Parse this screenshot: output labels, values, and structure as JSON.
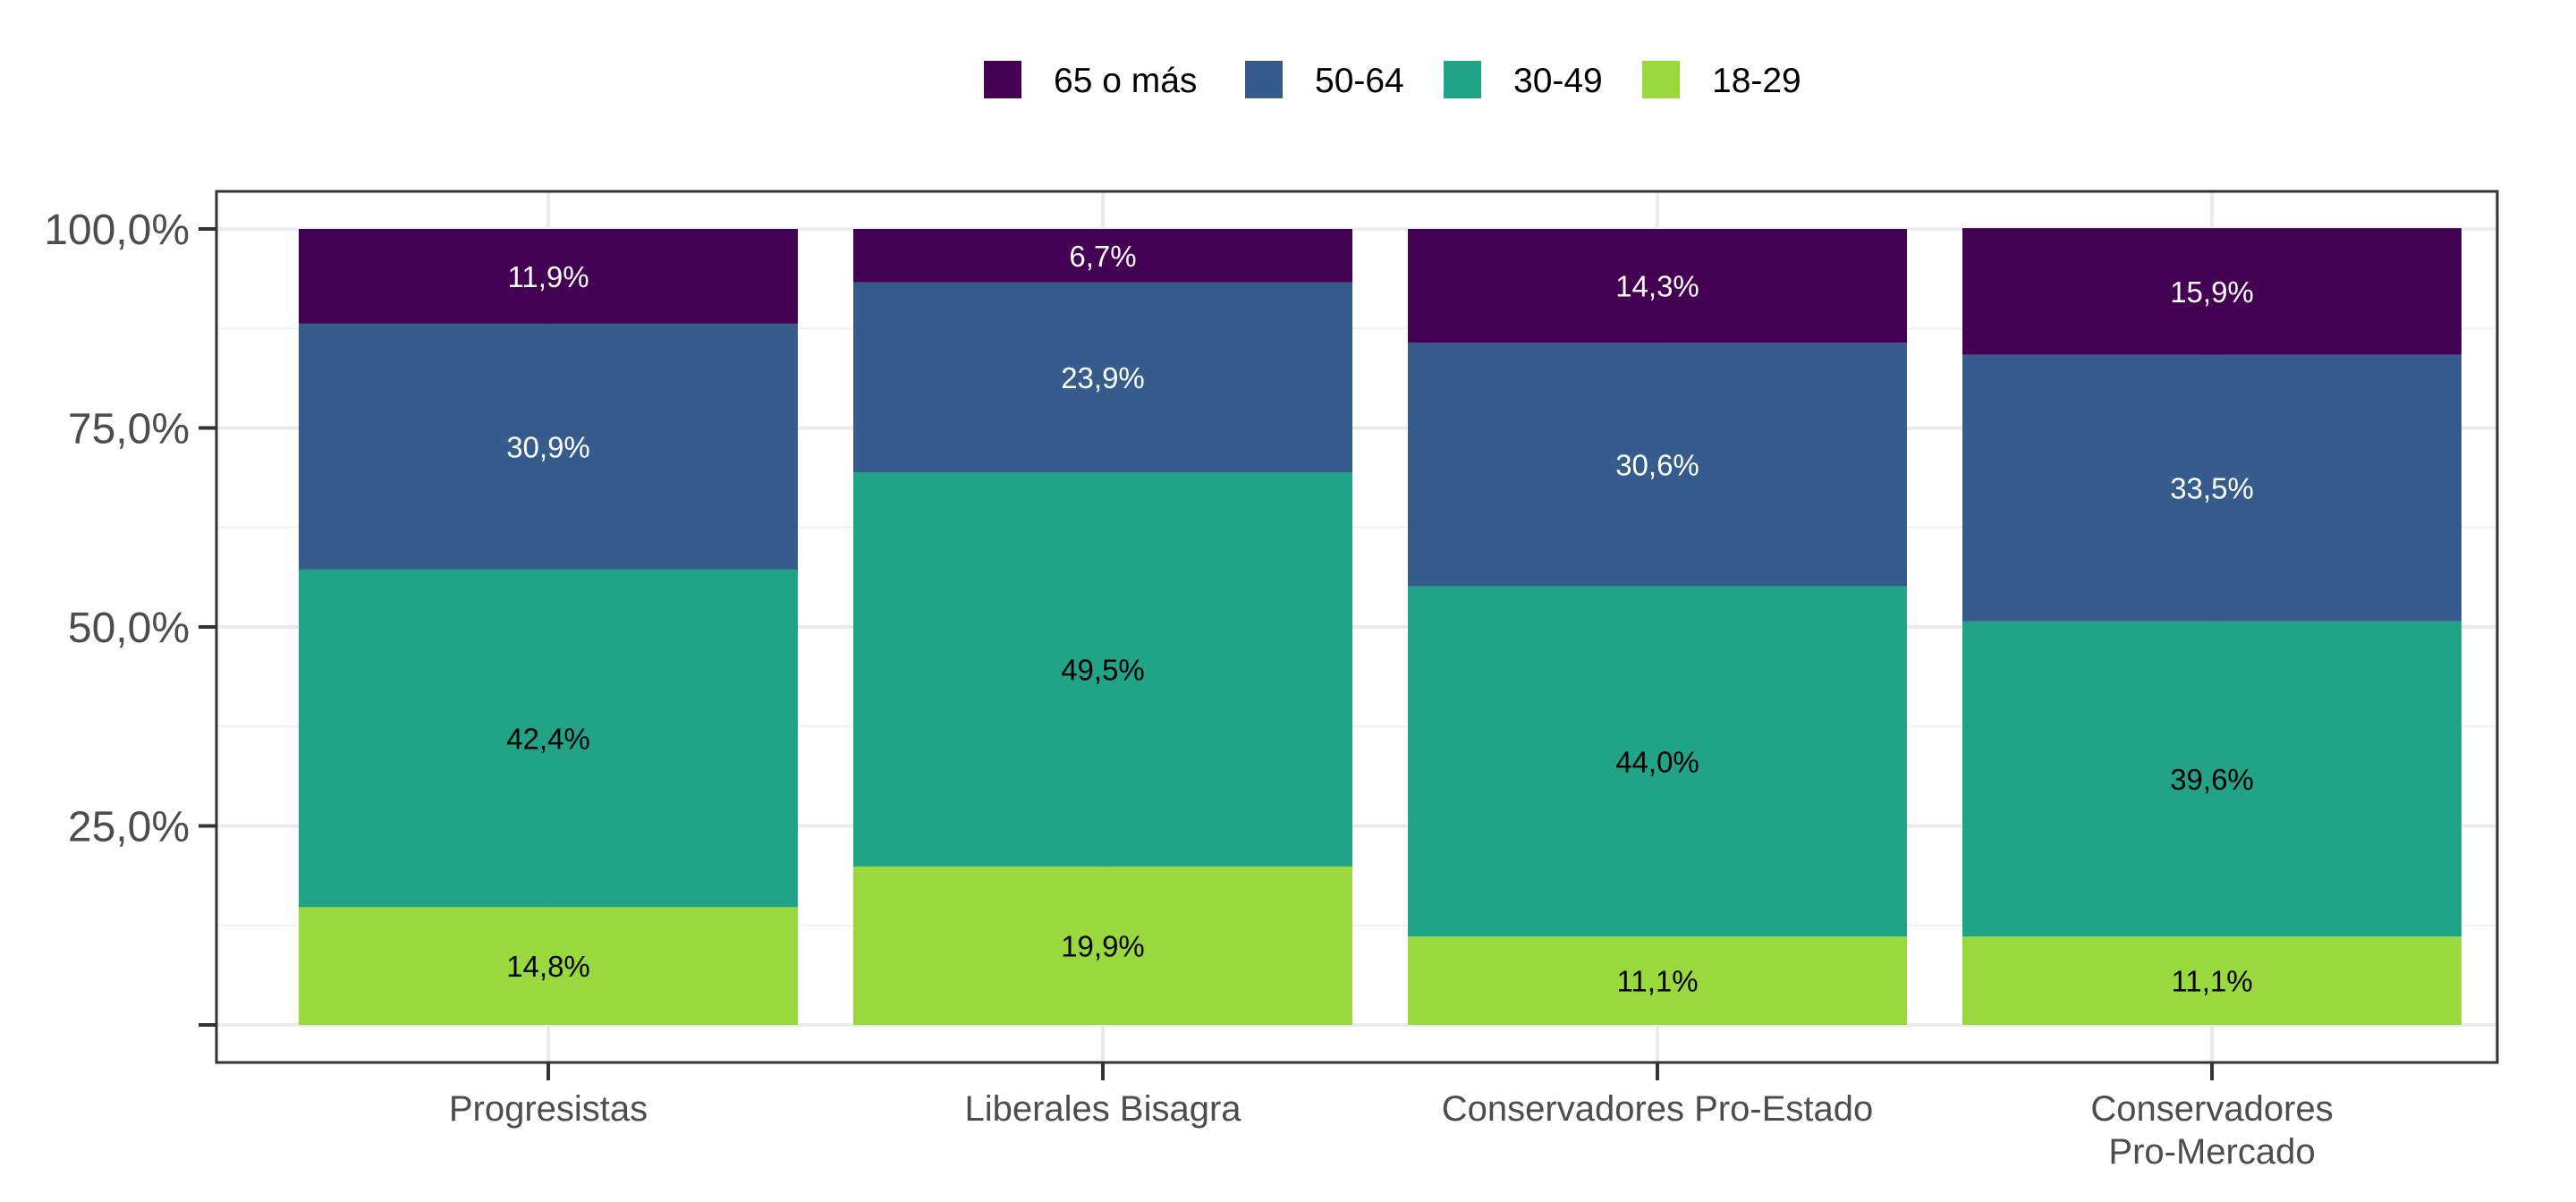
{
  "chart_data": {
    "type": "bar",
    "stacked": true,
    "orientation": "vertical",
    "categories": [
      "Progresistas",
      "Liberales Bisagra",
      "Conservadores Pro-Estado",
      "Conservadores\nPro-Mercado"
    ],
    "series": [
      {
        "name": "18-29",
        "color": "#9ad93d",
        "values": [
          14.8,
          19.9,
          11.1,
          11.1
        ],
        "labels": [
          "14,8%",
          "19,9%",
          "11,1%",
          "11,1%"
        ],
        "label_color": "#000000"
      },
      {
        "name": "30-49",
        "color": "#20a387",
        "values": [
          42.4,
          49.5,
          44.0,
          39.6
        ],
        "labels": [
          "42,4%",
          "49,5%",
          "44,0%",
          "39,6%"
        ],
        "label_color": "#000000"
      },
      {
        "name": "50-64",
        "color": "#365c8d",
        "values": [
          30.9,
          23.9,
          30.6,
          33.5
        ],
        "labels": [
          "30,9%",
          "23,9%",
          "30,6%",
          "33,5%"
        ],
        "label_color": "#ffffff"
      },
      {
        "name": "65 o más",
        "color": "#440154",
        "values": [
          11.9,
          6.7,
          14.3,
          15.9
        ],
        "labels": [
          "11,9%",
          "6,7%",
          "14,3%",
          "15,9%"
        ],
        "label_color": "#ffffff"
      }
    ],
    "legend": {
      "position": "top",
      "order": [
        "65 o más",
        "50-64",
        "30-49",
        "18-29"
      ]
    },
    "y_ticks": [
      0,
      25,
      50,
      75,
      100
    ],
    "y_tick_labels": [
      "",
      "25,0%",
      "50,0%",
      "75,0%",
      "100,0%"
    ],
    "ylim": [
      -4.5,
      104.5
    ],
    "grid": true,
    "title": "",
    "xlabel": "",
    "ylabel": ""
  }
}
